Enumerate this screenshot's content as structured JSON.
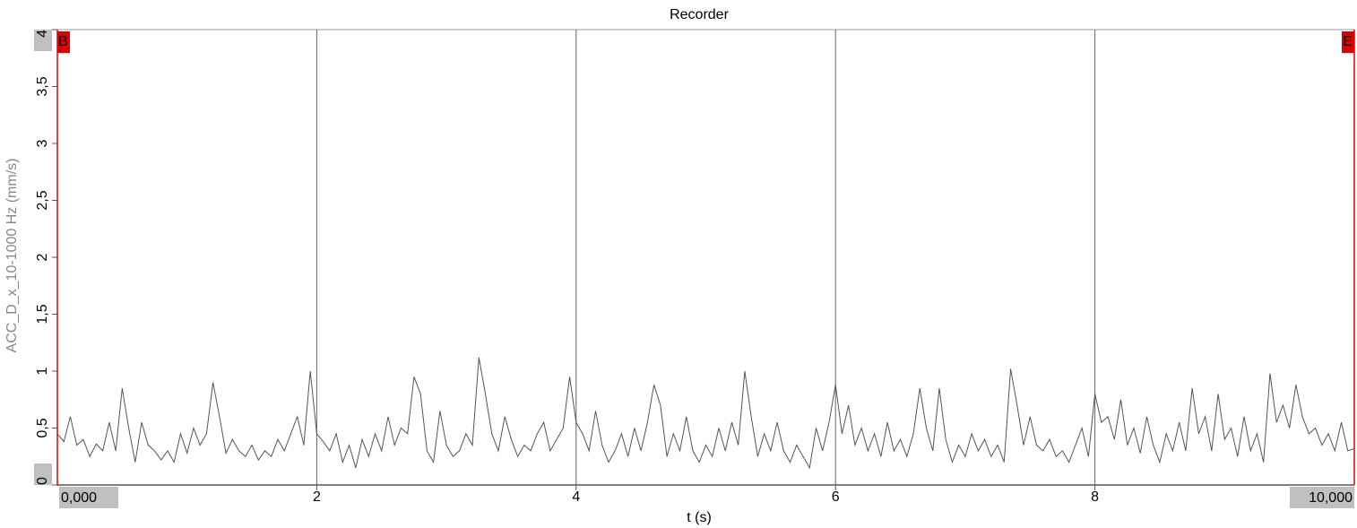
{
  "chart_data": {
    "type": "line",
    "title": "Recorder",
    "x_label": "t (s)",
    "y_label": "ACC_D_x_10-1000 Hz (mm/s)",
    "cursor_labels": [
      "B",
      "E"
    ],
    "color": "#555555",
    "cursor_color": "#e00000",
    "grid": true,
    "xlim": [
      0,
      10
    ],
    "ylim": [
      0,
      4
    ],
    "xticks": [
      {
        "value": 0,
        "label": "0,000"
      },
      2,
      4,
      6,
      8,
      {
        "value": 10,
        "label": "10,000"
      }
    ],
    "yticks": [
      0,
      {
        "value": 0.5,
        "label": "0,5"
      },
      1,
      {
        "value": 1.5,
        "label": "1,5"
      },
      2,
      {
        "value": 2.5,
        "label": "2,5"
      },
      3,
      {
        "value": 3.5,
        "label": "3,5"
      },
      4
    ],
    "x": [
      0,
      0.05,
      0.1,
      0.15,
      0.2,
      0.25,
      0.3,
      0.35,
      0.4,
      0.45,
      0.5,
      0.55,
      0.6,
      0.65,
      0.7,
      0.75,
      0.8,
      0.85,
      0.9,
      0.95,
      1,
      1.05,
      1.1,
      1.15,
      1.2,
      1.25,
      1.3,
      1.35,
      1.4,
      1.45,
      1.5,
      1.55,
      1.6,
      1.65,
      1.7,
      1.75,
      1.8,
      1.85,
      1.9,
      1.95,
      2,
      2.05,
      2.1,
      2.15,
      2.2,
      2.25,
      2.3,
      2.35,
      2.4,
      2.45,
      2.5,
      2.55,
      2.6,
      2.65,
      2.7,
      2.75,
      2.8,
      2.85,
      2.9,
      2.95,
      3,
      3.05,
      3.1,
      3.15,
      3.2,
      3.25,
      3.3,
      3.35,
      3.4,
      3.45,
      3.5,
      3.55,
      3.6,
      3.65,
      3.7,
      3.75,
      3.8,
      3.85,
      3.9,
      3.95,
      4,
      4.05,
      4.1,
      4.15,
      4.2,
      4.25,
      4.3,
      4.35,
      4.4,
      4.45,
      4.5,
      4.55,
      4.6,
      4.65,
      4.7,
      4.75,
      4.8,
      4.85,
      4.9,
      4.95,
      5,
      5.05,
      5.1,
      5.15,
      5.2,
      5.25,
      5.3,
      5.35,
      5.4,
      5.45,
      5.5,
      5.55,
      5.6,
      5.65,
      5.7,
      5.75,
      5.8,
      5.85,
      5.9,
      5.95,
      6,
      6.05,
      6.1,
      6.15,
      6.2,
      6.25,
      6.3,
      6.35,
      6.4,
      6.45,
      6.5,
      6.55,
      6.6,
      6.65,
      6.7,
      6.75,
      6.8,
      6.85,
      6.9,
      6.95,
      7,
      7.05,
      7.1,
      7.15,
      7.2,
      7.25,
      7.3,
      7.35,
      7.4,
      7.45,
      7.5,
      7.55,
      7.6,
      7.65,
      7.7,
      7.75,
      7.8,
      7.85,
      7.9,
      7.95,
      8,
      8.05,
      8.1,
      8.15,
      8.2,
      8.25,
      8.3,
      8.35,
      8.4,
      8.45,
      8.5,
      8.55,
      8.6,
      8.65,
      8.7,
      8.75,
      8.8,
      8.85,
      8.9,
      8.95,
      9,
      9.05,
      9.1,
      9.15,
      9.2,
      9.25,
      9.3,
      9.35,
      9.4,
      9.45,
      9.5,
      9.55,
      9.6,
      9.65,
      9.7,
      9.75,
      9.8,
      9.85,
      9.9,
      9.95,
      10
    ],
    "values": [
      0.45,
      0.38,
      0.6,
      0.35,
      0.4,
      0.25,
      0.36,
      0.3,
      0.55,
      0.3,
      0.85,
      0.5,
      0.2,
      0.55,
      0.35,
      0.3,
      0.22,
      0.3,
      0.2,
      0.45,
      0.28,
      0.5,
      0.35,
      0.45,
      0.9,
      0.6,
      0.28,
      0.4,
      0.3,
      0.25,
      0.35,
      0.22,
      0.3,
      0.25,
      0.4,
      0.3,
      0.45,
      0.6,
      0.35,
      1.0,
      0.45,
      0.38,
      0.3,
      0.45,
      0.2,
      0.35,
      0.15,
      0.4,
      0.25,
      0.45,
      0.3,
      0.6,
      0.35,
      0.5,
      0.45,
      0.95,
      0.8,
      0.3,
      0.2,
      0.65,
      0.35,
      0.25,
      0.3,
      0.45,
      0.35,
      1.12,
      0.8,
      0.45,
      0.3,
      0.6,
      0.4,
      0.25,
      0.35,
      0.3,
      0.45,
      0.55,
      0.3,
      0.4,
      0.5,
      0.95,
      0.55,
      0.45,
      0.3,
      0.65,
      0.35,
      0.2,
      0.3,
      0.45,
      0.25,
      0.5,
      0.3,
      0.55,
      0.88,
      0.7,
      0.25,
      0.45,
      0.3,
      0.6,
      0.3,
      0.2,
      0.35,
      0.25,
      0.5,
      0.3,
      0.55,
      0.35,
      1.0,
      0.6,
      0.25,
      0.45,
      0.3,
      0.55,
      0.3,
      0.2,
      0.35,
      0.25,
      0.15,
      0.5,
      0.3,
      0.55,
      0.88,
      0.45,
      0.7,
      0.35,
      0.5,
      0.3,
      0.45,
      0.25,
      0.55,
      0.3,
      0.4,
      0.25,
      0.45,
      0.85,
      0.5,
      0.3,
      0.85,
      0.4,
      0.2,
      0.35,
      0.25,
      0.45,
      0.3,
      0.4,
      0.25,
      0.35,
      0.2,
      1.02,
      0.7,
      0.35,
      0.6,
      0.35,
      0.3,
      0.4,
      0.25,
      0.3,
      0.2,
      0.35,
      0.5,
      0.25,
      0.8,
      0.55,
      0.6,
      0.4,
      0.75,
      0.35,
      0.5,
      0.28,
      0.6,
      0.35,
      0.2,
      0.45,
      0.3,
      0.55,
      0.3,
      0.85,
      0.45,
      0.6,
      0.3,
      0.8,
      0.4,
      0.5,
      0.25,
      0.6,
      0.3,
      0.45,
      0.2,
      0.98,
      0.55,
      0.7,
      0.5,
      0.88,
      0.6,
      0.45,
      0.5,
      0.35,
      0.45,
      0.3,
      0.55,
      0.3,
      0.32
    ]
  }
}
